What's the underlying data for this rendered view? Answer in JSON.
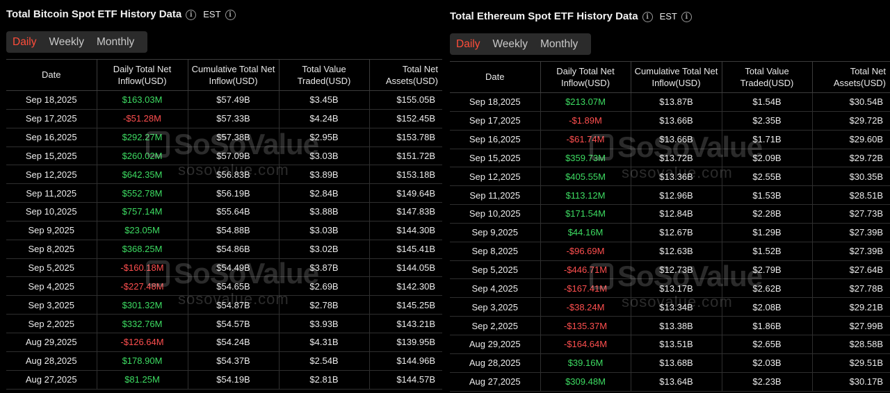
{
  "btc": {
    "title": "Total Bitcoin Spot ETF History Data",
    "timezone": "EST",
    "tabs": [
      "Daily",
      "Weekly",
      "Monthly"
    ],
    "active_tab": "Daily",
    "columns": [
      "Date",
      "Daily Total Net Inflow(USD)",
      "Cumulative Total Net Inflow(USD)",
      "Total Value Traded(USD)",
      "Total Net Assets(USD)"
    ],
    "rows": [
      [
        "Sep 18,2025",
        "$163.03M",
        "$57.49B",
        "$3.45B",
        "$155.05B"
      ],
      [
        "Sep 17,2025",
        "-$51.28M",
        "$57.33B",
        "$4.24B",
        "$152.45B"
      ],
      [
        "Sep 16,2025",
        "$292.27M",
        "$57.38B",
        "$2.95B",
        "$153.78B"
      ],
      [
        "Sep 15,2025",
        "$260.02M",
        "$57.09B",
        "$3.03B",
        "$151.72B"
      ],
      [
        "Sep 12,2025",
        "$642.35M",
        "$56.83B",
        "$3.89B",
        "$153.18B"
      ],
      [
        "Sep 11,2025",
        "$552.78M",
        "$56.19B",
        "$2.84B",
        "$149.64B"
      ],
      [
        "Sep 10,2025",
        "$757.14M",
        "$55.64B",
        "$3.88B",
        "$147.83B"
      ],
      [
        "Sep 9,2025",
        "$23.05M",
        "$54.88B",
        "$3.03B",
        "$144.30B"
      ],
      [
        "Sep 8,2025",
        "$368.25M",
        "$54.86B",
        "$3.02B",
        "$145.41B"
      ],
      [
        "Sep 5,2025",
        "-$160.18M",
        "$54.49B",
        "$3.87B",
        "$144.05B"
      ],
      [
        "Sep 4,2025",
        "-$227.48M",
        "$54.65B",
        "$2.69B",
        "$142.30B"
      ],
      [
        "Sep 3,2025",
        "$301.32M",
        "$54.87B",
        "$2.78B",
        "$145.25B"
      ],
      [
        "Sep 2,2025",
        "$332.76M",
        "$54.57B",
        "$3.93B",
        "$143.21B"
      ],
      [
        "Aug 29,2025",
        "-$126.64M",
        "$54.24B",
        "$4.31B",
        "$139.95B"
      ],
      [
        "Aug 28,2025",
        "$178.90M",
        "$54.37B",
        "$2.54B",
        "$144.96B"
      ],
      [
        "Aug 27,2025",
        "$81.25M",
        "$54.19B",
        "$2.81B",
        "$144.57B"
      ]
    ]
  },
  "eth": {
    "title": "Total Ethereum Spot ETF History Data",
    "timezone": "EST",
    "tabs": [
      "Daily",
      "Weekly",
      "Monthly"
    ],
    "active_tab": "Daily",
    "columns": [
      "Date",
      "Daily Total Net Inflow(USD)",
      "Cumulative Total Net Inflow(USD)",
      "Total Value Traded(USD)",
      "Total Net Assets(USD)"
    ],
    "rows": [
      [
        "Sep 18,2025",
        "$213.07M",
        "$13.87B",
        "$1.54B",
        "$30.54B"
      ],
      [
        "Sep 17,2025",
        "-$1.89M",
        "$13.66B",
        "$2.35B",
        "$29.72B"
      ],
      [
        "Sep 16,2025",
        "-$61.74M",
        "$13.66B",
        "$1.71B",
        "$29.60B"
      ],
      [
        "Sep 15,2025",
        "$359.73M",
        "$13.72B",
        "$2.09B",
        "$29.72B"
      ],
      [
        "Sep 12,2025",
        "$405.55M",
        "$13.36B",
        "$2.55B",
        "$30.35B"
      ],
      [
        "Sep 11,2025",
        "$113.12M",
        "$12.96B",
        "$1.53B",
        "$28.51B"
      ],
      [
        "Sep 10,2025",
        "$171.54M",
        "$12.84B",
        "$2.28B",
        "$27.73B"
      ],
      [
        "Sep 9,2025",
        "$44.16M",
        "$12.67B",
        "$1.29B",
        "$27.39B"
      ],
      [
        "Sep 8,2025",
        "-$96.69M",
        "$12.63B",
        "$1.52B",
        "$27.39B"
      ],
      [
        "Sep 5,2025",
        "-$446.71M",
        "$12.73B",
        "$2.79B",
        "$27.64B"
      ],
      [
        "Sep 4,2025",
        "-$167.41M",
        "$13.17B",
        "$2.62B",
        "$27.78B"
      ],
      [
        "Sep 3,2025",
        "-$38.24M",
        "$13.34B",
        "$2.08B",
        "$29.21B"
      ],
      [
        "Sep 2,2025",
        "-$135.37M",
        "$13.38B",
        "$1.86B",
        "$27.99B"
      ],
      [
        "Aug 29,2025",
        "-$164.64M",
        "$13.51B",
        "$2.65B",
        "$28.58B"
      ],
      [
        "Aug 28,2025",
        "$39.16M",
        "$13.68B",
        "$2.03B",
        "$29.51B"
      ],
      [
        "Aug 27,2025",
        "$309.48M",
        "$13.64B",
        "$2.23B",
        "$30.17B"
      ]
    ]
  },
  "watermark": {
    "name": "SoSoValue",
    "url": "sosovalue.com"
  },
  "colors": {
    "positive": "#3ddc62",
    "negative": "#ff4f4f",
    "active_tab": "#ff4d3a",
    "background": "#000000"
  }
}
